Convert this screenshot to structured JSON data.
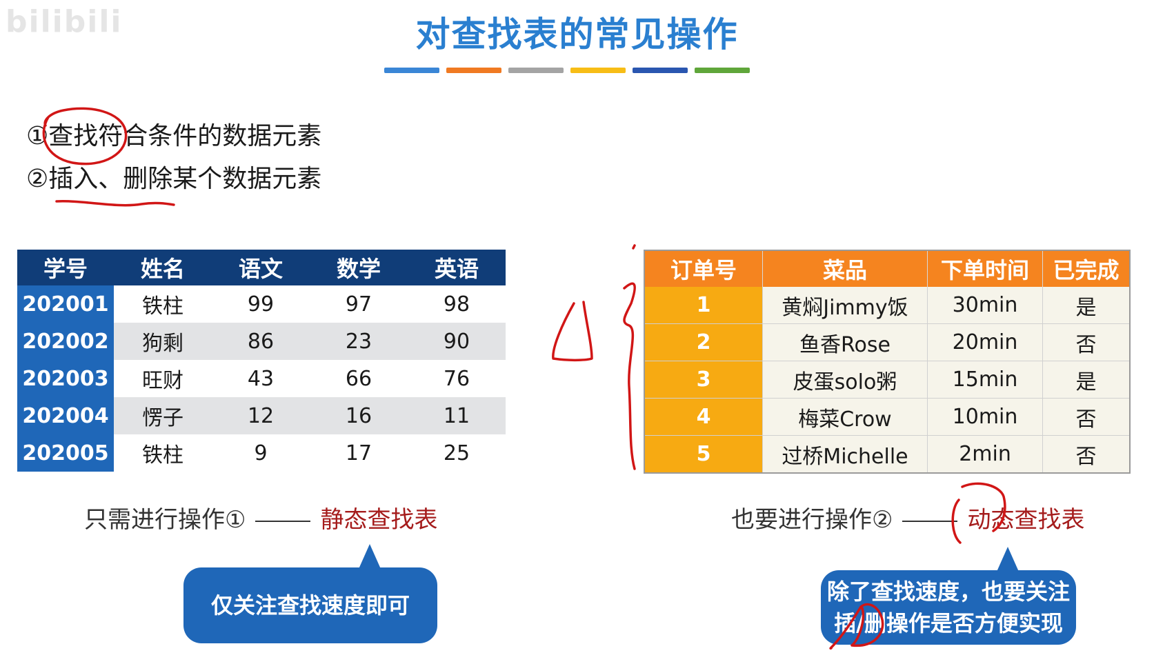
{
  "watermark": "bilibili",
  "title": "对查找表的常见操作",
  "title_bar_colors": [
    "#3a86d6",
    "#f07a22",
    "#a4a4a4",
    "#f7bd16",
    "#2a56b0",
    "#5fa63a"
  ],
  "operations": [
    "①查找符合条件的数据元素",
    "②插入、删除某个数据元素"
  ],
  "student_table": {
    "headers": [
      "学号",
      "姓名",
      "语文",
      "数学",
      "英语"
    ],
    "rows": [
      [
        "202001",
        "铁柱",
        "99",
        "97",
        "98"
      ],
      [
        "202002",
        "狗剩",
        "86",
        "23",
        "90"
      ],
      [
        "202003",
        "旺财",
        "43",
        "66",
        "76"
      ],
      [
        "202004",
        "愣子",
        "12",
        "16",
        "11"
      ],
      [
        "202005",
        "铁柱",
        "9",
        "17",
        "25"
      ]
    ]
  },
  "order_table": {
    "headers": [
      "订单号",
      "菜品",
      "下单时间",
      "已完成"
    ],
    "rows": [
      [
        "1",
        "黄焖Jimmy饭",
        "30min",
        "是"
      ],
      [
        "2",
        "鱼香Rose",
        "20min",
        "否"
      ],
      [
        "3",
        "皮蛋solo粥",
        "15min",
        "是"
      ],
      [
        "4",
        "梅菜Crow",
        "10min",
        "否"
      ],
      [
        "5",
        "过桥Michelle",
        "2min",
        "否"
      ]
    ]
  },
  "left_caption": {
    "text": "只需进行操作①",
    "highlight": "静态查找表"
  },
  "right_caption": {
    "text": "也要进行操作②",
    "highlight": "动态查找表"
  },
  "left_bubble": "仅关注查找速度即可",
  "right_bubble": [
    "除了查找速度，也要关注",
    "插/删操作是否方便实现"
  ],
  "colors": {
    "title": "#2a7fd0",
    "student_header": "#103d78",
    "student_id_col": "#1f67b8",
    "order_header": "#f5841f",
    "order_id_col": "#f7aa12",
    "highlight": "#a51c1c",
    "ink": "#d11616"
  }
}
